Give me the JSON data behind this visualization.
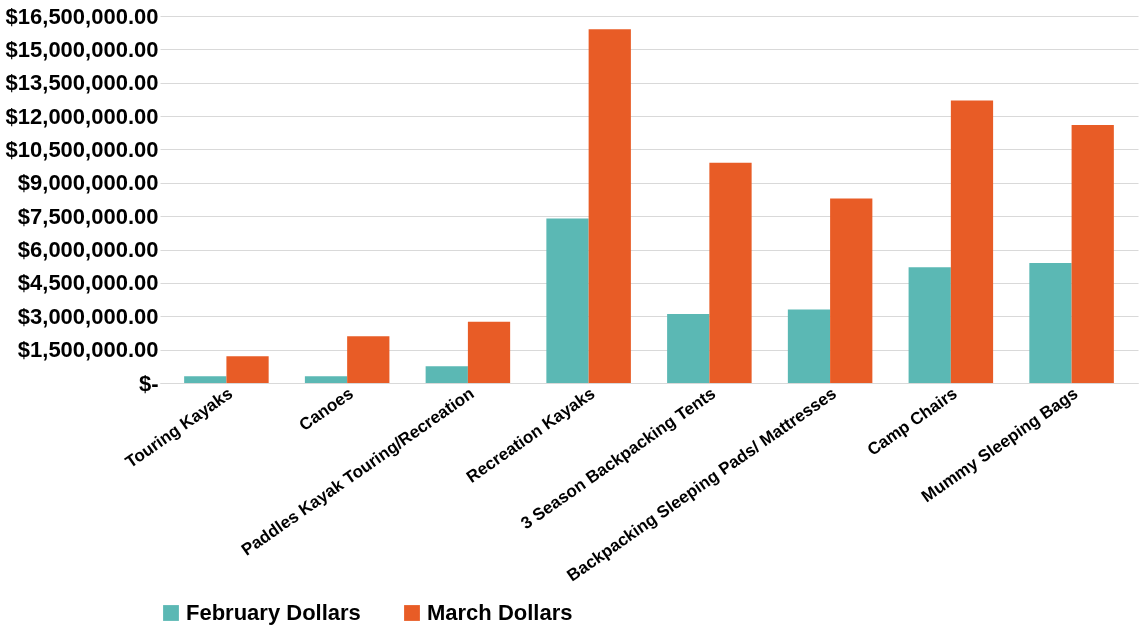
{
  "chart_data": {
    "type": "bar",
    "categories": [
      "Touring Kayaks",
      "Canoes",
      "Paddles Kayak Touring/Recreation",
      "Recreation Kayaks",
      "3 Season Backpacking Tents",
      "Backpacking Sleeping Pads/ Mattresses",
      "Camp Chairs",
      "Mummy Sleeping Bags"
    ],
    "series": [
      {
        "name": "February Dollars",
        "color": "#5bb8b4",
        "values": [
          300000,
          300000,
          750000,
          7400000,
          3100000,
          3300000,
          5200000,
          5400000
        ]
      },
      {
        "name": "March Dollars",
        "color": "#e85c26",
        "values": [
          1200000,
          2100000,
          2750000,
          15900000,
          9900000,
          8300000,
          12700000,
          11600000
        ]
      }
    ],
    "ylim": [
      0,
      16500000
    ],
    "yticks": [
      {
        "value": 0,
        "label": "$-"
      },
      {
        "value": 1500000,
        "label": "$1,500,000.00"
      },
      {
        "value": 3000000,
        "label": "$3,000,000.00"
      },
      {
        "value": 4500000,
        "label": "$4,500,000.00"
      },
      {
        "value": 6000000,
        "label": "$6,000,000.00"
      },
      {
        "value": 7500000,
        "label": "$7,500,000.00"
      },
      {
        "value": 9000000,
        "label": "$9,000,000.00"
      },
      {
        "value": 10500000,
        "label": "$10,500,000.00"
      },
      {
        "value": 12000000,
        "label": "$12,000,000.00"
      },
      {
        "value": 13500000,
        "label": "$13,500,000.00"
      },
      {
        "value": 15000000,
        "label": "$15,000,000.00"
      },
      {
        "value": 16500000,
        "label": "$16,500,000.00"
      }
    ],
    "grid": "y",
    "legend": "bottom"
  }
}
